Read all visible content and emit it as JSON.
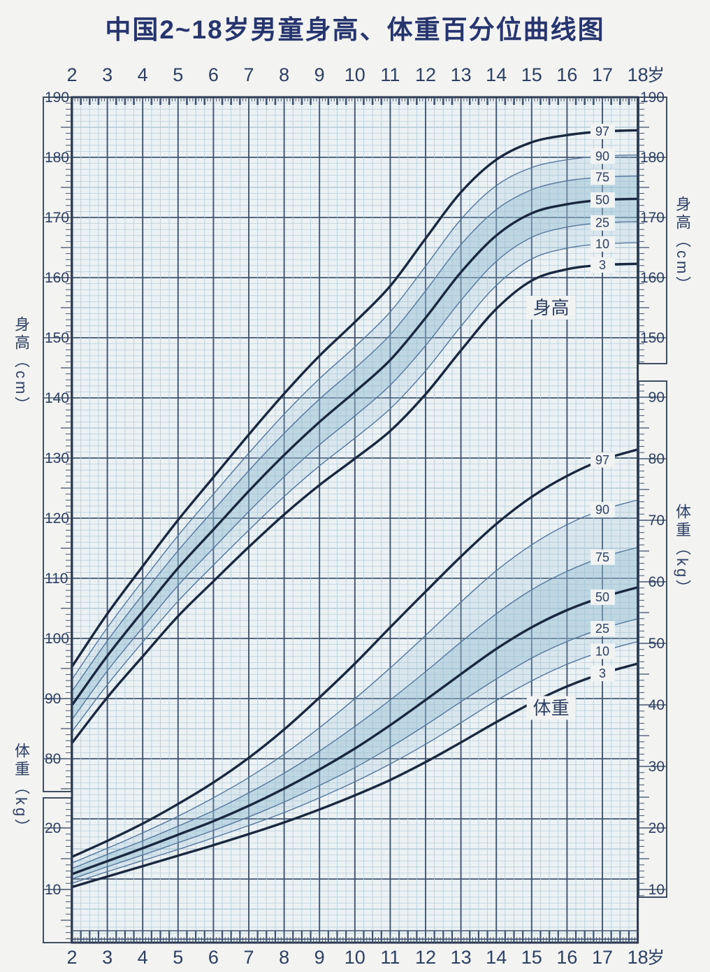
{
  "title": "中国2~18岁男童身高、体重百分位曲线图",
  "axes": {
    "age_ticks": [
      2,
      3,
      4,
      5,
      6,
      7,
      8,
      9,
      10,
      11,
      12,
      13,
      14,
      15,
      16,
      17,
      18
    ],
    "age_unit": "岁",
    "height_axis_label": "身高（cm）",
    "weight_axis_label": "体重（kg）",
    "height_left_labels": [
      190,
      180,
      170,
      160,
      150,
      140,
      130,
      120,
      110,
      100,
      90,
      80
    ],
    "height_right_labels": [
      190,
      180,
      170,
      160,
      150
    ],
    "weight_right_labels": [
      90,
      80,
      70,
      60,
      50,
      40,
      30,
      20,
      10
    ],
    "weight_left_labels": [
      20,
      10
    ]
  },
  "annotations": {
    "height_curves_label": "身高",
    "weight_curves_label": "体重"
  },
  "colors": {
    "page_bg": "#f3f3f1",
    "plot_bg": "#ecf1f4",
    "grid_light": "#b3cdda",
    "grid_medium": "#8fb3c4",
    "grid_heavy": "#41546f",
    "frame": "#2c3b52",
    "curve_bold": "#19283f",
    "curve_light": "#54779b",
    "band": "#94bed3",
    "chip_bg": "#f1f3f2",
    "text": "#2d3f63",
    "title": "#26356d"
  },
  "chart_data": [
    {
      "type": "line",
      "name": "height_percentiles",
      "title": "身高百分位曲线",
      "unit": "cm",
      "xlabel": "岁",
      "ylabel": "身高（cm）",
      "x": [
        2,
        3,
        4,
        5,
        6,
        7,
        8,
        9,
        10,
        11,
        12,
        13,
        14,
        15,
        16,
        17,
        18
      ],
      "ylim": [
        80,
        190
      ],
      "bold_series": [
        "97",
        "50",
        "3"
      ],
      "annotation": "身高",
      "series": [
        {
          "name": "97",
          "values": [
            95.3,
            104.1,
            112.0,
            119.7,
            126.8,
            133.9,
            140.7,
            147.0,
            152.6,
            158.6,
            166.5,
            174.2,
            179.6,
            182.5,
            183.7,
            184.3,
            184.5
          ]
        },
        {
          "name": "90",
          "values": [
            93.2,
            101.8,
            109.6,
            117.1,
            124.0,
            130.8,
            137.3,
            143.2,
            148.5,
            154.3,
            161.9,
            169.7,
            175.3,
            178.3,
            179.6,
            180.2,
            180.4
          ]
        },
        {
          "name": "75",
          "values": [
            91.2,
            99.6,
            107.3,
            114.6,
            121.3,
            127.9,
            134.1,
            139.8,
            144.9,
            150.5,
            157.8,
            165.5,
            171.3,
            174.6,
            176.1,
            176.7,
            176.9
          ]
        },
        {
          "name": "50",
          "values": [
            88.9,
            97.1,
            104.5,
            111.7,
            118.1,
            124.5,
            130.5,
            136.0,
            141.0,
            146.3,
            153.3,
            160.9,
            167.0,
            170.7,
            172.2,
            172.9,
            173.1
          ]
        },
        {
          "name": "25",
          "values": [
            86.5,
            94.6,
            101.8,
            108.8,
            115.0,
            121.1,
            126.9,
            132.2,
            137.0,
            142.1,
            148.7,
            156.2,
            162.7,
            166.7,
            168.4,
            169.1,
            169.3
          ]
        },
        {
          "name": "10",
          "values": [
            84.5,
            92.3,
            99.4,
            106.2,
            112.2,
            118.0,
            123.6,
            128.7,
            133.3,
            138.2,
            144.5,
            151.9,
            158.7,
            163.1,
            164.9,
            165.6,
            165.8
          ]
        },
        {
          "name": "3",
          "values": [
            82.6,
            90.2,
            97.0,
            103.7,
            109.5,
            115.2,
            120.6,
            125.5,
            129.9,
            134.5,
            140.6,
            147.9,
            154.8,
            159.5,
            161.4,
            162.1,
            162.3
          ]
        }
      ]
    },
    {
      "type": "line",
      "name": "weight_percentiles",
      "title": "体重百分位曲线",
      "unit": "kg",
      "xlabel": "岁",
      "ylabel": "体重（kg）",
      "x": [
        2,
        3,
        4,
        5,
        6,
        7,
        8,
        9,
        10,
        11,
        12,
        13,
        14,
        15,
        16,
        17,
        18
      ],
      "ylim": [
        10,
        90
      ],
      "bold_series": [
        "97",
        "50",
        "3"
      ],
      "annotation": "体重",
      "series": [
        {
          "name": "97",
          "values": [
            15.3,
            17.9,
            20.7,
            23.9,
            27.4,
            31.4,
            36.0,
            41.2,
            46.7,
            52.6,
            58.4,
            64.1,
            69.4,
            73.8,
            77.2,
            79.8,
            81.5
          ]
        },
        {
          "name": "90",
          "values": [
            14.3,
            16.7,
            19.2,
            21.9,
            24.9,
            28.2,
            32.0,
            36.3,
            41.0,
            46.0,
            51.3,
            56.7,
            61.8,
            66.0,
            69.3,
            71.7,
            73.3
          ]
        },
        {
          "name": "75",
          "values": [
            13.4,
            15.7,
            17.9,
            20.3,
            22.8,
            25.7,
            28.9,
            32.5,
            36.5,
            40.8,
            45.4,
            50.2,
            54.8,
            58.7,
            61.7,
            64.0,
            65.6
          ]
        },
        {
          "name": "50",
          "values": [
            12.5,
            14.6,
            16.7,
            18.9,
            21.1,
            23.6,
            26.4,
            29.5,
            32.9,
            36.7,
            40.8,
            45.0,
            49.1,
            52.6,
            55.4,
            57.5,
            59.1
          ]
        },
        {
          "name": "25",
          "values": [
            11.7,
            13.7,
            15.6,
            17.6,
            19.6,
            21.8,
            24.2,
            26.9,
            29.8,
            33.1,
            36.7,
            40.5,
            44.2,
            47.6,
            50.3,
            52.4,
            54.0
          ]
        },
        {
          "name": "10",
          "values": [
            11.0,
            12.9,
            14.7,
            16.5,
            18.4,
            20.4,
            22.5,
            24.9,
            27.5,
            30.4,
            33.6,
            37.1,
            40.7,
            43.9,
            46.6,
            48.7,
            50.3
          ]
        },
        {
          "name": "3",
          "values": [
            10.4,
            12.1,
            13.8,
            15.5,
            17.2,
            19.0,
            20.9,
            23.0,
            25.3,
            27.8,
            30.7,
            33.9,
            37.2,
            40.3,
            43.0,
            45.1,
            46.7
          ]
        }
      ]
    }
  ]
}
